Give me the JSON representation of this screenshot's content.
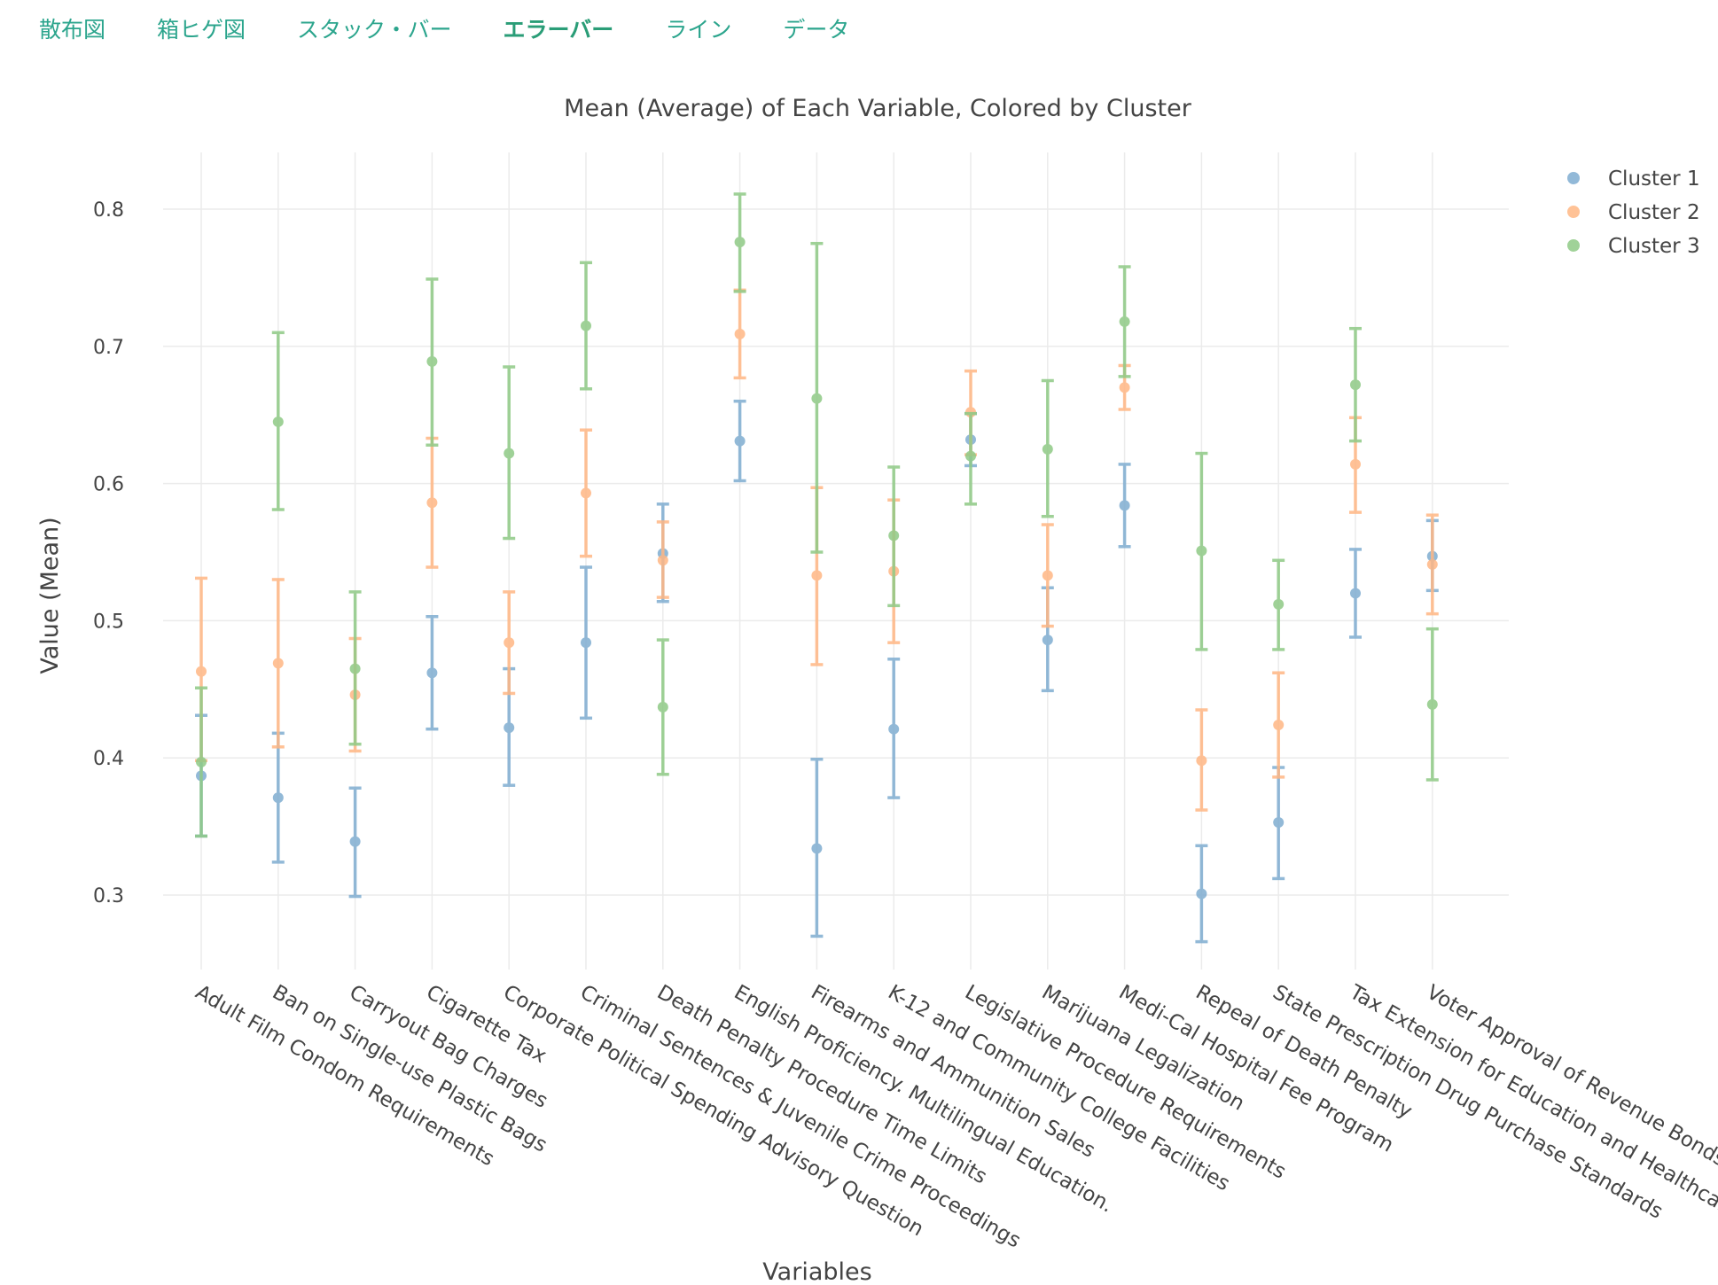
{
  "nav": {
    "tabs": [
      {
        "label": "散布図",
        "active": false
      },
      {
        "label": "箱ヒゲ図",
        "active": false
      },
      {
        "label": "スタック・バー",
        "active": false
      },
      {
        "label": "エラーバー",
        "active": true
      },
      {
        "label": "ライン",
        "active": false
      },
      {
        "label": "データ",
        "active": false
      }
    ]
  },
  "chart_data": {
    "type": "scatter",
    "title": "Mean (Average) of Each Variable, Colored by Cluster",
    "xlabel": "Variables",
    "ylabel": "Value (Mean)",
    "ylim": [
      0.24,
      0.84
    ],
    "yticks": [
      0.3,
      0.4,
      0.5,
      0.6,
      0.7,
      0.8
    ],
    "grid": true,
    "legend_position": "top-right",
    "categories": [
      "Adult Film Condom Requirements",
      "Ban on Single-use Plastic Bags",
      "Carryout Bag Charges",
      "Cigarette Tax",
      "Corporate Political Spending Advisory Question",
      "Criminal Sentences & Juvenile Crime Proceedings",
      "Death Penalty Procedure Time Limits",
      "English Proficiency. Multilingual Education.",
      "Firearms and Ammunition Sales",
      "K-12 and Community College Facilities",
      "Legislative Procedure Requirements",
      "Marijuana Legalization",
      "Medi-Cal Hospital Fee Program",
      "Repeal of Death Penalty",
      "State Prescription Drug Purchase Standards",
      "Tax Extension for Education and Healthcare",
      "Voter Approval of Revenue Bonds"
    ],
    "series": [
      {
        "name": "Cluster 1",
        "color": "#7fadd1",
        "values": [
          0.387,
          0.371,
          0.339,
          0.462,
          0.422,
          0.484,
          0.549,
          0.631,
          0.334,
          0.421,
          0.632,
          0.486,
          0.584,
          0.301,
          0.353,
          0.52,
          0.547
        ],
        "error_low": [
          0.343,
          0.324,
          0.299,
          0.421,
          0.38,
          0.429,
          0.514,
          0.602,
          0.27,
          0.371,
          0.613,
          0.449,
          0.554,
          0.266,
          0.312,
          0.488,
          0.522
        ],
        "error_high": [
          0.431,
          0.418,
          0.378,
          0.503,
          0.465,
          0.539,
          0.585,
          0.66,
          0.399,
          0.472,
          0.651,
          0.524,
          0.614,
          0.336,
          0.393,
          0.552,
          0.573
        ]
      },
      {
        "name": "Cluster 2",
        "color": "#ffb784",
        "values": [
          0.463,
          0.469,
          0.446,
          0.586,
          0.484,
          0.593,
          0.544,
          0.709,
          0.533,
          0.536,
          0.652,
          0.533,
          0.67,
          0.398,
          0.424,
          0.614,
          0.541
        ],
        "error_low": [
          0.398,
          0.408,
          0.405,
          0.539,
          0.447,
          0.547,
          0.517,
          0.677,
          0.468,
          0.484,
          0.621,
          0.496,
          0.654,
          0.362,
          0.386,
          0.579,
          0.505
        ],
        "error_high": [
          0.531,
          0.53,
          0.487,
          0.633,
          0.521,
          0.639,
          0.572,
          0.741,
          0.597,
          0.588,
          0.682,
          0.57,
          0.686,
          0.435,
          0.462,
          0.648,
          0.577
        ]
      },
      {
        "name": "Cluster 3",
        "color": "#8fca86",
        "values": [
          0.397,
          0.645,
          0.465,
          0.689,
          0.622,
          0.715,
          0.437,
          0.776,
          0.662,
          0.562,
          0.62,
          0.625,
          0.718,
          0.551,
          0.512,
          0.672,
          0.439
        ],
        "error_low": [
          0.343,
          0.581,
          0.41,
          0.628,
          0.56,
          0.669,
          0.388,
          0.74,
          0.55,
          0.511,
          0.585,
          0.576,
          0.678,
          0.479,
          0.479,
          0.631,
          0.384
        ],
        "error_high": [
          0.451,
          0.71,
          0.521,
          0.749,
          0.685,
          0.761,
          0.486,
          0.811,
          0.775,
          0.612,
          0.651,
          0.675,
          0.758,
          0.622,
          0.544,
          0.713,
          0.494
        ]
      }
    ]
  }
}
